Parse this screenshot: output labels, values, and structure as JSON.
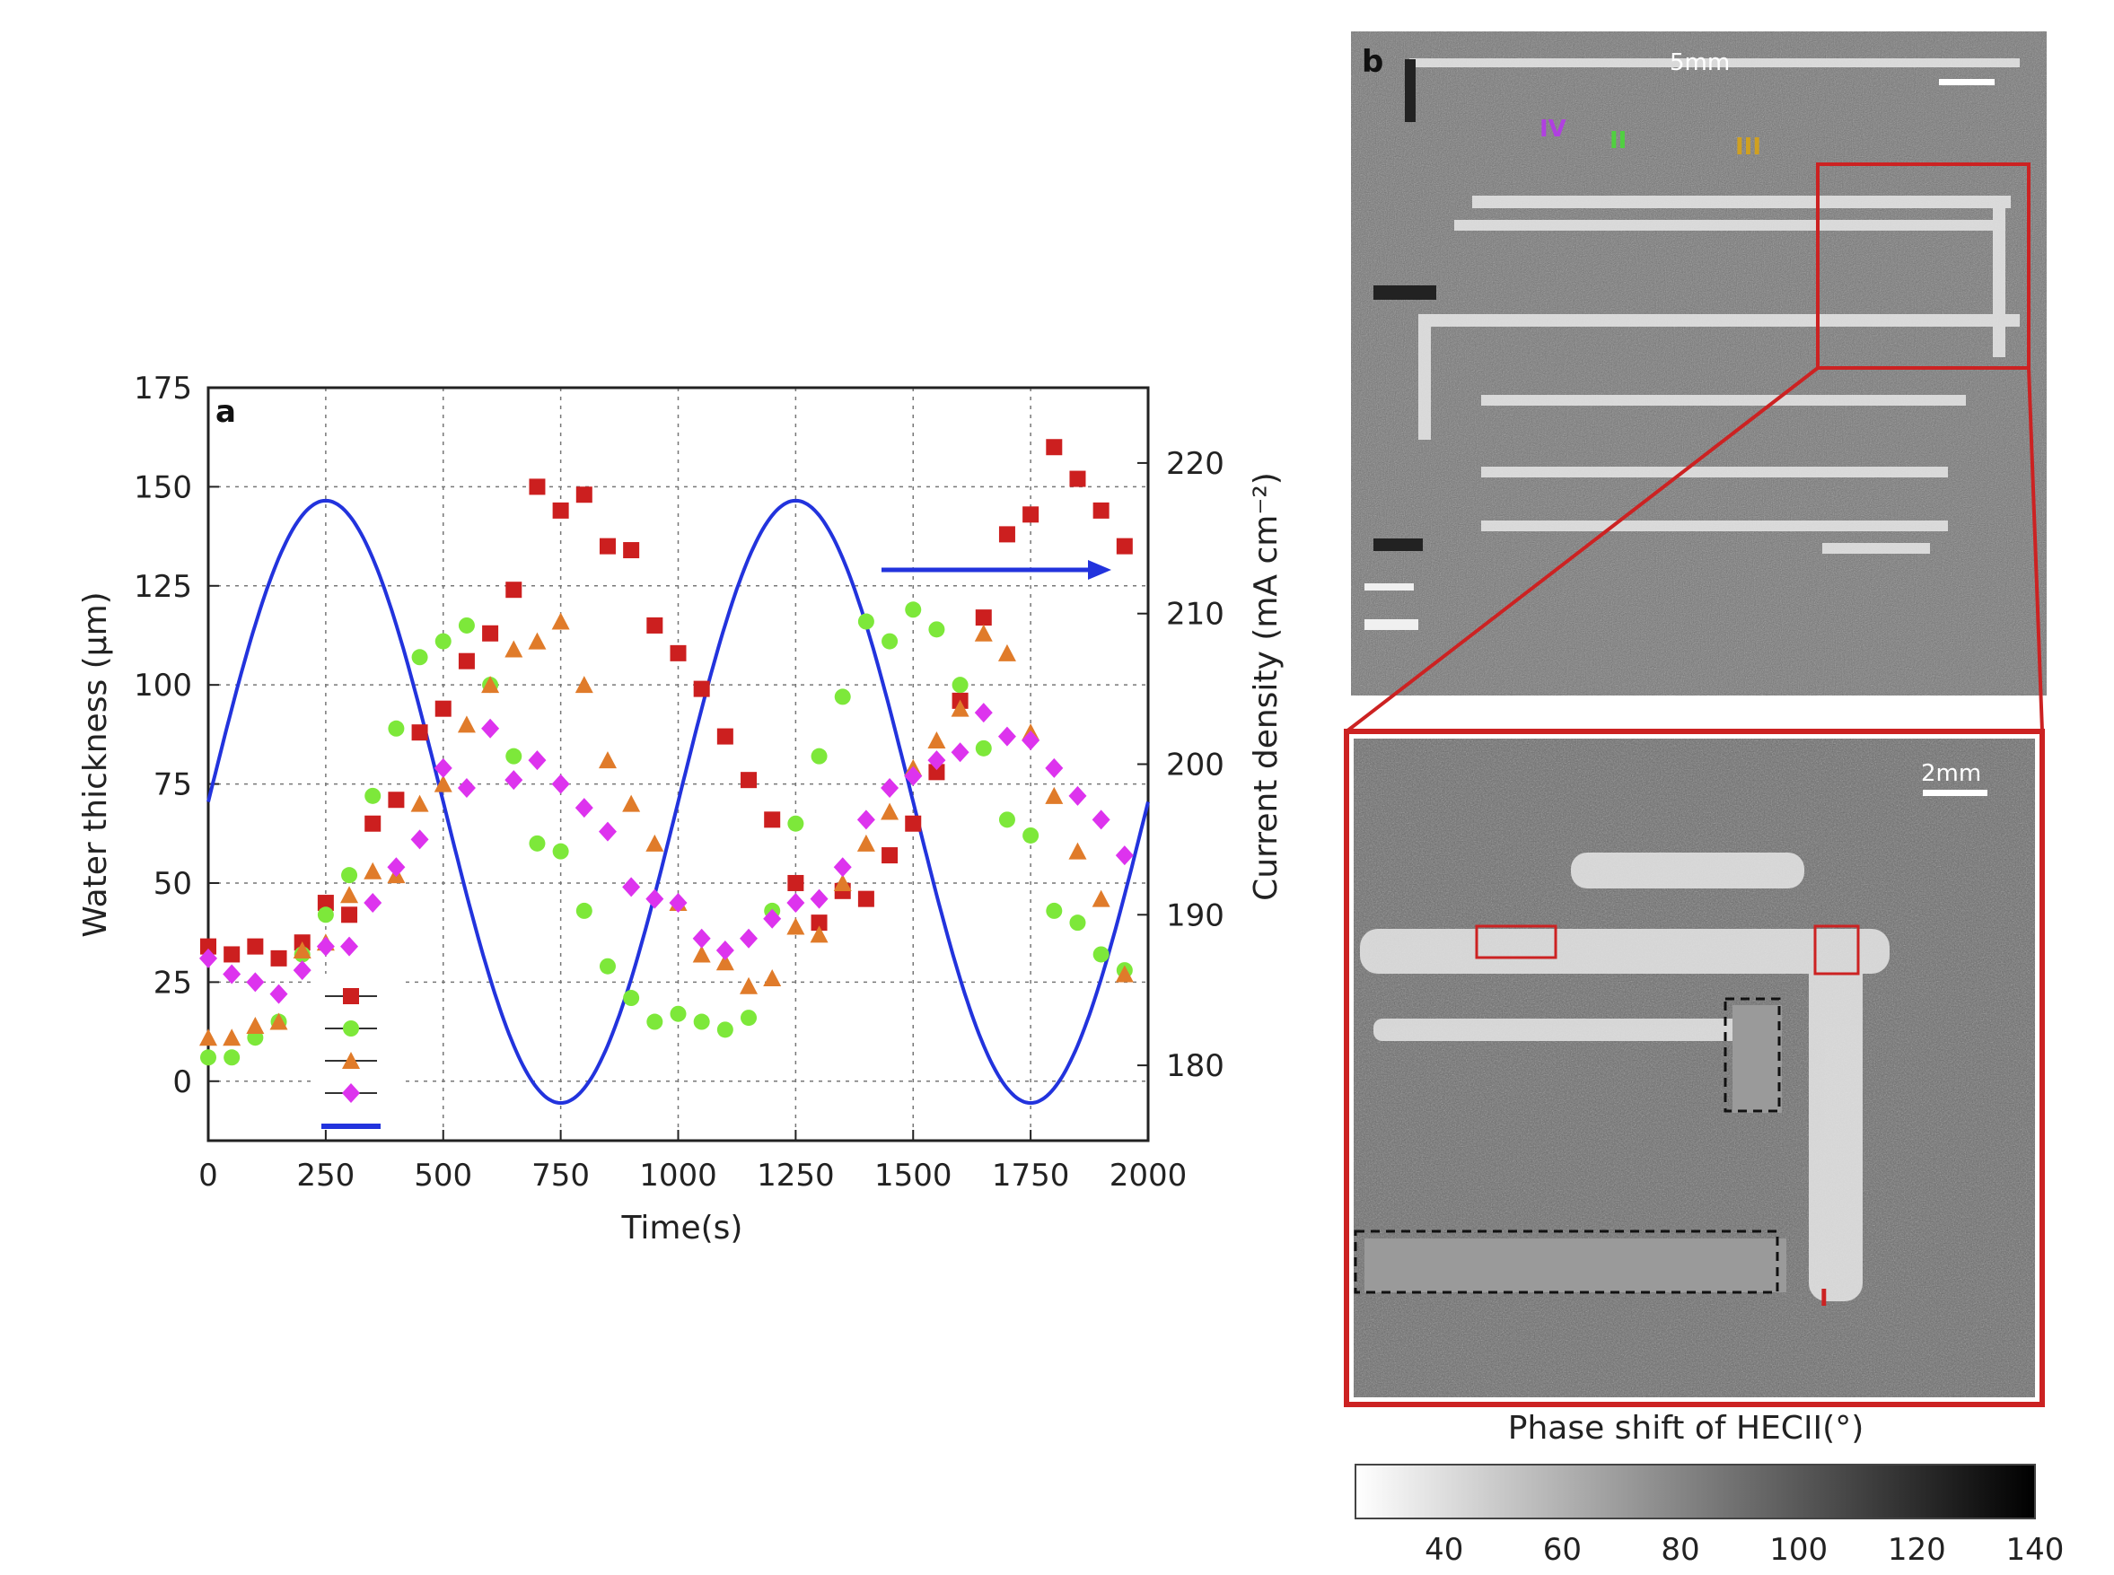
{
  "chart_data": [
    {
      "panel": "a",
      "type": "scatter",
      "xlabel": "Time(s)",
      "ylabel": "Water thickness (μm)",
      "y2label": "Current density (mA cm⁻²)",
      "xlim": [
        0,
        2000
      ],
      "ylim": [
        -15,
        175
      ],
      "y2lim": [
        175,
        225
      ],
      "xticks": [
        "0",
        "250",
        "500",
        "750",
        "1000",
        "1250",
        "1500",
        "1750",
        "2000"
      ],
      "yticks": [
        "0",
        "25",
        "50",
        "75",
        "100",
        "125",
        "150",
        "175"
      ],
      "y2ticks": [
        "180",
        "190",
        "200",
        "210",
        "220"
      ],
      "grid": true,
      "legend_position": "lower-left",
      "series": [
        {
          "marker": "square",
          "color": "#cc1f1f",
          "axis": "left",
          "x": [
            0,
            50,
            100,
            150,
            200,
            250,
            300,
            350,
            400,
            450,
            500,
            550,
            600,
            650,
            700,
            750,
            800,
            850,
            900,
            950,
            1000,
            1050,
            1100,
            1150,
            1200,
            1250,
            1300,
            1350,
            1400,
            1450,
            1500,
            1550,
            1600,
            1650,
            1700,
            1750,
            1800,
            1850,
            1900,
            1950
          ],
          "y": [
            34,
            32,
            34,
            31,
            35,
            45,
            42,
            65,
            71,
            88,
            94,
            106,
            113,
            124,
            150,
            144,
            148,
            135,
            134,
            115,
            108,
            99,
            87,
            76,
            66,
            50,
            40,
            48,
            46,
            57,
            65,
            78,
            96,
            117,
            138,
            143,
            160,
            152,
            144,
            135
          ]
        },
        {
          "marker": "circle",
          "color": "#7de83a",
          "axis": "left",
          "x": [
            0,
            50,
            100,
            150,
            200,
            250,
            300,
            350,
            400,
            450,
            500,
            550,
            600,
            650,
            700,
            750,
            800,
            850,
            900,
            950,
            1000,
            1050,
            1100,
            1150,
            1200,
            1250,
            1300,
            1350,
            1400,
            1450,
            1500,
            1550,
            1600,
            1650,
            1700,
            1750,
            1800,
            1850,
            1900,
            1950
          ],
          "y": [
            6,
            6,
            11,
            15,
            32,
            42,
            52,
            72,
            89,
            107,
            111,
            115,
            100,
            82,
            60,
            58,
            43,
            29,
            21,
            15,
            17,
            15,
            13,
            16,
            43,
            65,
            82,
            97,
            116,
            111,
            119,
            114,
            100,
            84,
            66,
            62,
            43,
            40,
            32,
            28
          ]
        },
        {
          "marker": "triangle",
          "color": "#e07b2a",
          "axis": "left",
          "x": [
            0,
            50,
            100,
            150,
            200,
            250,
            300,
            350,
            400,
            450,
            500,
            550,
            600,
            650,
            700,
            750,
            800,
            850,
            900,
            950,
            1000,
            1050,
            1100,
            1150,
            1200,
            1250,
            1300,
            1350,
            1400,
            1450,
            1500,
            1550,
            1600,
            1650,
            1700,
            1750,
            1800,
            1850,
            1900,
            1950
          ],
          "y": [
            11,
            11,
            14,
            15,
            33,
            35,
            47,
            53,
            52,
            70,
            75,
            90,
            100,
            109,
            111,
            116,
            100,
            81,
            70,
            60,
            45,
            32,
            30,
            24,
            26,
            39,
            37,
            50,
            60,
            68,
            79,
            86,
            94,
            113,
            108,
            88,
            72,
            58,
            46,
            27
          ]
        },
        {
          "marker": "diamond",
          "color": "#dd33ee",
          "axis": "left",
          "x": [
            0,
            50,
            100,
            150,
            200,
            250,
            300,
            350,
            400,
            450,
            500,
            550,
            600,
            650,
            700,
            750,
            800,
            850,
            900,
            950,
            1000,
            1050,
            1100,
            1150,
            1200,
            1250,
            1300,
            1350,
            1400,
            1450,
            1500,
            1550,
            1600,
            1650,
            1700,
            1750,
            1800,
            1850,
            1900,
            1950
          ],
          "y": [
            31,
            27,
            25,
            22,
            28,
            34,
            34,
            45,
            54,
            61,
            79,
            74,
            89,
            76,
            81,
            75,
            69,
            63,
            49,
            46,
            45,
            36,
            33,
            36,
            41,
            45,
            46,
            54,
            66,
            74,
            77,
            81,
            83,
            93,
            87,
            86,
            79,
            72,
            66,
            57
          ]
        },
        {
          "marker": "line",
          "color": "#2233dd",
          "axis": "right",
          "function": "sinusoid",
          "x": [
            0,
            125,
            250,
            375,
            500,
            625,
            750,
            875,
            1000,
            1125,
            1250,
            1375,
            1500,
            1625,
            1750,
            1875,
            2000
          ],
          "y": [
            197.5,
            211.5,
            217.5,
            211.5,
            197.5,
            183.5,
            177.5,
            183.5,
            197.5,
            211.5,
            217.5,
            211.5,
            197.5,
            183.5,
            177.5,
            183.5,
            197.5
          ]
        }
      ]
    },
    {
      "panel": "b",
      "type": "heatmap",
      "title": "Phase shift of HECII(°)",
      "colorbar_ticks": [
        "40",
        "60",
        "80",
        "100",
        "120",
        "140"
      ],
      "colorbar_range": [
        25,
        140
      ],
      "scale_top": "5mm",
      "scale_bottom": "2mm",
      "labels": [
        "IV",
        "II",
        "III",
        "I"
      ],
      "colors": {
        "label_iv": "#b040e0",
        "label_ii": "#50d040",
        "label_iii": "#d0a020",
        "zoom_box": "#cc2222"
      }
    }
  ]
}
